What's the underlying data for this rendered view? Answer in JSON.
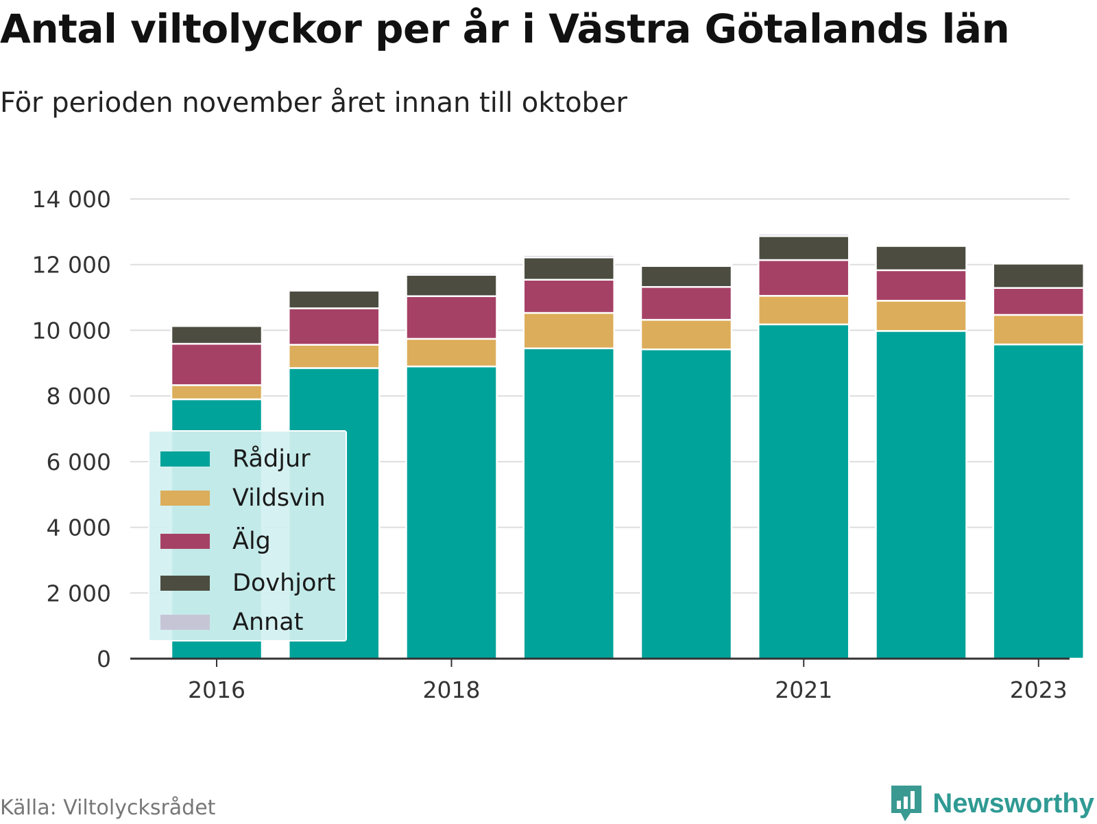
{
  "title": "Antal viltolyckor per år i Västra Götalands län",
  "subtitle": "För perioden november året innan till oktober",
  "source": "Källa: Viltolycksrådet",
  "brand": {
    "name": "Newsworthy",
    "icon": "newsworthy-logo-icon",
    "color": "#2f9a93"
  },
  "chart_data": {
    "type": "bar",
    "stacked": true,
    "categories": [
      "2016",
      "2017",
      "2018",
      "2019",
      "2020",
      "2021",
      "2022",
      "2023"
    ],
    "x_tick_labels": [
      "2016",
      "",
      "2018",
      "",
      "",
      "2021",
      "",
      "2023"
    ],
    "series": [
      {
        "name": "Rådjur",
        "color": "#00a39a",
        "values": [
          7900,
          8850,
          8900,
          9450,
          9420,
          10180,
          9980,
          9570
        ]
      },
      {
        "name": "Vildsvin",
        "color": "#dcad5a",
        "values": [
          430,
          710,
          840,
          1080,
          900,
          870,
          920,
          900
        ]
      },
      {
        "name": "Älg",
        "color": "#a64166",
        "values": [
          1260,
          1110,
          1300,
          1010,
          1000,
          1090,
          930,
          820
        ]
      },
      {
        "name": "Dovhjort",
        "color": "#4c4d40",
        "values": [
          540,
          540,
          650,
          680,
          640,
          730,
          740,
          740
        ]
      },
      {
        "name": "Annat",
        "color": "#c6c5d6",
        "values": [
          30,
          30,
          60,
          70,
          50,
          70,
          20,
          20
        ]
      }
    ],
    "ylim": [
      0,
      14000
    ],
    "yticks": [
      0,
      2000,
      4000,
      6000,
      8000,
      10000,
      12000,
      14000
    ],
    "ytick_labels": [
      "0",
      "2 000",
      "4 000",
      "6 000",
      "8 000",
      "10 000",
      "12 000",
      "14 000"
    ],
    "grid": true,
    "legend_position": "bottom-left"
  }
}
